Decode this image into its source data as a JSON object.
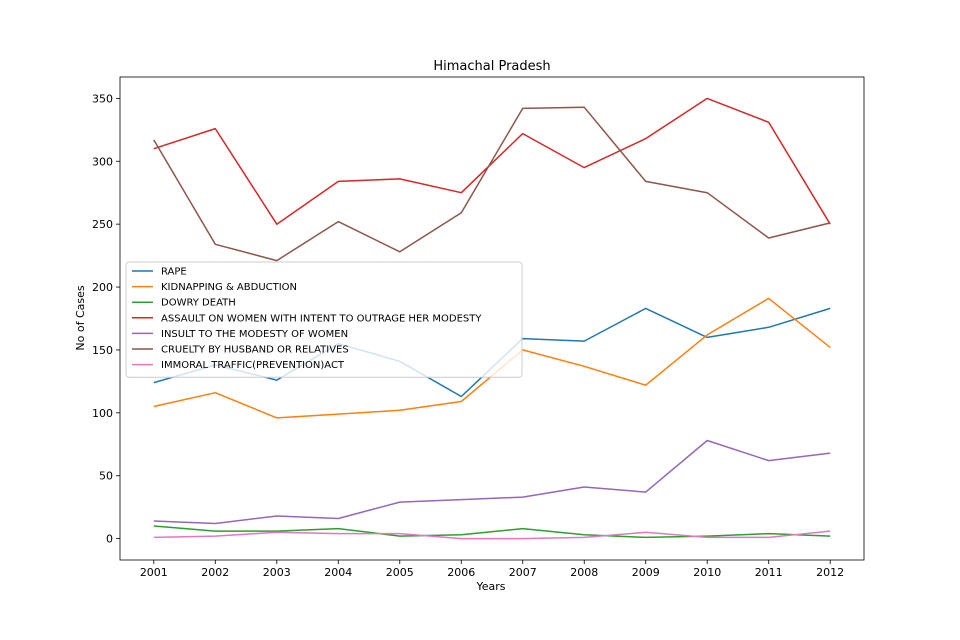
{
  "chart_data": {
    "type": "line",
    "title": "Himachal Pradesh",
    "xlabel": "Years",
    "ylabel": "No of Cases",
    "x": [
      2001,
      2002,
      2003,
      2004,
      2005,
      2006,
      2007,
      2008,
      2009,
      2010,
      2011,
      2012
    ],
    "xticks": [
      "2001",
      "2002",
      "2003",
      "2004",
      "2005",
      "2006",
      "2007",
      "2008",
      "2009",
      "2010",
      "2011",
      "2012"
    ],
    "yticks": [
      0,
      50,
      100,
      150,
      200,
      250,
      300,
      350
    ],
    "ylim": [
      -17,
      367
    ],
    "xlim": [
      2000.45,
      2012.55
    ],
    "grid": false,
    "legend": "center-left",
    "series": [
      {
        "name": "RAPE",
        "color": "#1f77b4",
        "values": [
          124,
          138,
          126,
          155,
          141,
          113,
          159,
          157,
          183,
          160,
          168,
          183
        ]
      },
      {
        "name": "KIDNAPPING & ABDUCTION",
        "color": "#ff7f0e",
        "values": [
          105,
          116,
          96,
          99,
          102,
          109,
          150,
          137,
          122,
          162,
          191,
          152
        ]
      },
      {
        "name": "DOWRY DEATH",
        "color": "#2ca02c",
        "values": [
          10,
          6,
          6,
          8,
          2,
          3,
          8,
          3,
          1,
          2,
          4,
          2
        ]
      },
      {
        "name": "ASSAULT ON WOMEN WITH INTENT TO OUTRAGE HER MODESTY",
        "color": "#d62728",
        "values": [
          310,
          326,
          250,
          284,
          286,
          275,
          322,
          295,
          318,
          350,
          331,
          250
        ]
      },
      {
        "name": "INSULT TO THE MODESTY OF WOMEN",
        "color": "#9467bd",
        "values": [
          14,
          12,
          18,
          16,
          29,
          31,
          33,
          41,
          37,
          78,
          62,
          68
        ]
      },
      {
        "name": "CRUELTY BY HUSBAND OR RELATIVES",
        "color": "#8c564b",
        "values": [
          317,
          234,
          221,
          252,
          228,
          259,
          342,
          343,
          284,
          275,
          239,
          251
        ]
      },
      {
        "name": "IMMORAL TRAFFIC(PREVENTION)ACT",
        "color": "#e377c2",
        "values": [
          1,
          2,
          5,
          4,
          4,
          0,
          0,
          1,
          5,
          1,
          1,
          6
        ]
      }
    ]
  }
}
